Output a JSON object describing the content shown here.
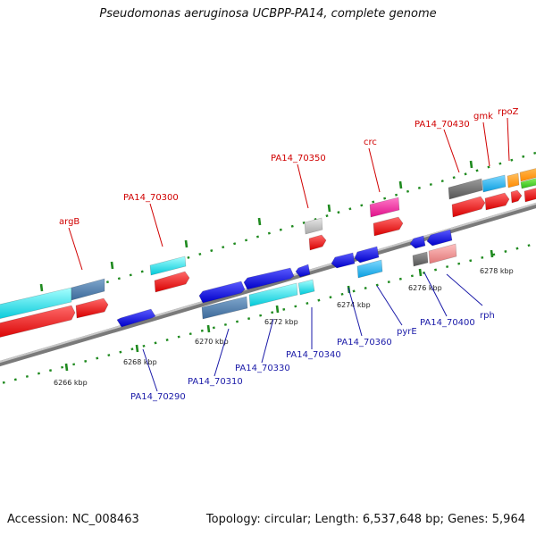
{
  "header": {
    "title": "Pseudomonas aeruginosa UCBPP-PA14, complete genome"
  },
  "footer": {
    "accession": "Accession: NC_008463",
    "topology": "Topology: circular; Length: 6,537,648 bp; Genes: 5,964"
  },
  "scale_labels": [
    "6266 kbp",
    "6268 kbp",
    "6270 kbp",
    "6272 kbp",
    "6274 kbp",
    "6276 kbp",
    "6278 kbp"
  ],
  "forward_labels": [
    "argB",
    "PA14_70300",
    "PA14_70350",
    "crc",
    "PA14_70430",
    "gmk",
    "rpoZ"
  ],
  "reverse_labels": [
    "PA14_70290",
    "PA14_70310",
    "PA14_70330",
    "PA14_70340",
    "PA14_70360",
    "pyrE",
    "PA14_70400",
    "rph"
  ],
  "colors": {
    "forward_label": "#d00000",
    "reverse_label": "#1a1aa8",
    "axis": "#909090",
    "ticks": "#1f8a1f",
    "cds_forward": "#ff1a1a",
    "cds_reverse": "#1a1aee"
  }
}
